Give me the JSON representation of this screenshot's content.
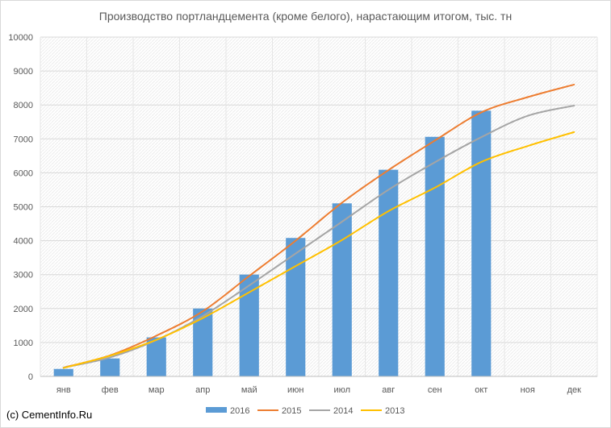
{
  "chart_data": {
    "type": "bar",
    "title": "Производство портландцемента (кроме белого), нарастающим итогом, тыс. тн",
    "categories": [
      "янв",
      "фев",
      "мар",
      "апр",
      "май",
      "июн",
      "июл",
      "авг",
      "сен",
      "окт",
      "ноя",
      "дек"
    ],
    "ylim": [
      0,
      10000
    ],
    "yticks": [
      0,
      1000,
      2000,
      3000,
      4000,
      5000,
      6000,
      7000,
      8000,
      9000,
      10000
    ],
    "grid": true,
    "legend": "bottom",
    "series": [
      {
        "name": "2016",
        "kind": "bar",
        "color": "#5b9bd5",
        "values": [
          220,
          530,
          1150,
          2000,
          3000,
          4080,
          5100,
          6090,
          7060,
          7830,
          null,
          null
        ]
      },
      {
        "name": "2015",
        "kind": "line",
        "color": "#ed7d31",
        "values": [
          260,
          620,
          1200,
          1920,
          2960,
          4000,
          5120,
          6080,
          6950,
          7780,
          8230,
          8600
        ]
      },
      {
        "name": "2014",
        "kind": "line",
        "color": "#a5a5a5",
        "values": [
          260,
          560,
          1070,
          1780,
          2680,
          3620,
          4560,
          5500,
          6310,
          7050,
          7680,
          7980
        ]
      },
      {
        "name": "2013",
        "kind": "line",
        "color": "#ffc000",
        "values": [
          250,
          610,
          1080,
          1720,
          2480,
          3250,
          4020,
          4870,
          5560,
          6320,
          6790,
          7200
        ]
      }
    ]
  },
  "footer": {
    "copyright": "(c) CementInfo.Ru"
  }
}
